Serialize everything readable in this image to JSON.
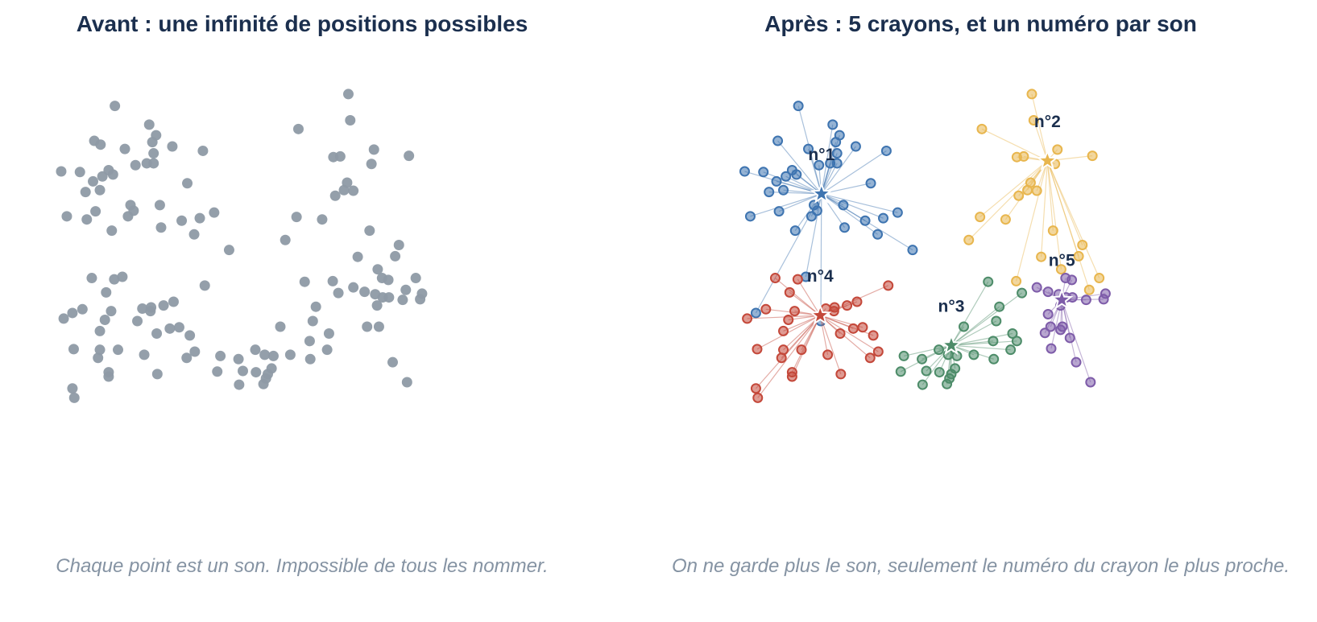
{
  "left_panel": {
    "title": "Avant : une infinité de positions possibles",
    "caption": "Chaque point est un son. Impossible de tous les nommer."
  },
  "right_panel": {
    "title": "Après : 5 crayons, et un numéro par son",
    "caption": "On ne garde plus le son, seulement le numéro du crayon le plus proche."
  },
  "colors": {
    "unassigned_point": "#8e9aa5",
    "cluster_1": "#3e74b0",
    "cluster_2": "#e8b64e",
    "cluster_3": "#4d8c69",
    "cluster_4": "#c4483a",
    "cluster_5": "#7e5ca9"
  },
  "chart_data": [
    {
      "type": "scatter",
      "title": "Avant : une infinité de positions possibles",
      "points": [
        [
          -4.31,
          1.29
        ],
        [
          -4.22,
          0.57
        ],
        [
          -4.27,
          -1.07
        ],
        [
          -4.13,
          -0.98
        ],
        [
          -4.11,
          -1.56
        ],
        [
          -4.13,
          -2.19
        ],
        [
          -4.1,
          -2.34
        ],
        [
          -4.01,
          1.28
        ],
        [
          -3.97,
          -0.92
        ],
        [
          -3.92,
          0.96
        ],
        [
          -3.9,
          0.52
        ],
        [
          -3.82,
          -0.42
        ],
        [
          -3.8,
          1.13
        ],
        [
          -3.78,
          1.78
        ],
        [
          -3.76,
          0.65
        ],
        [
          -3.72,
          -1.7
        ],
        [
          -3.69,
          0.99
        ],
        [
          -3.69,
          -1.27
        ],
        [
          -3.69,
          -1.57
        ],
        [
          -3.68,
          1.72
        ],
        [
          -3.65,
          1.21
        ],
        [
          -3.61,
          -1.09
        ],
        [
          -3.59,
          -0.65
        ],
        [
          -3.55,
          1.31
        ],
        [
          -3.55,
          -2.0
        ],
        [
          -3.55,
          -1.93
        ],
        [
          -3.51,
          -0.95
        ],
        [
          -3.5,
          0.34
        ],
        [
          -3.48,
          1.24
        ],
        [
          -3.46,
          -0.44
        ],
        [
          -3.45,
          2.34
        ],
        [
          -3.4,
          -1.57
        ],
        [
          -3.33,
          -0.4
        ],
        [
          -3.29,
          1.65
        ],
        [
          -3.24,
          0.57
        ],
        [
          -3.2,
          0.75
        ],
        [
          -3.15,
          0.66
        ],
        [
          -3.12,
          1.39
        ],
        [
          -3.09,
          -1.11
        ],
        [
          -3.01,
          -0.91
        ],
        [
          -2.98,
          -1.65
        ],
        [
          -2.94,
          1.42
        ],
        [
          -2.9,
          2.04
        ],
        [
          -2.88,
          -0.95
        ],
        [
          -2.87,
          -0.89
        ],
        [
          -2.85,
          1.76
        ],
        [
          -2.83,
          1.58
        ],
        [
          -2.83,
          1.42
        ],
        [
          -2.79,
          1.87
        ],
        [
          -2.78,
          -1.31
        ],
        [
          -2.77,
          -1.96
        ],
        [
          -2.73,
          0.75
        ],
        [
          -2.71,
          0.39
        ],
        [
          -2.67,
          -0.86
        ],
        [
          -2.57,
          -1.23
        ],
        [
          -2.53,
          1.69
        ],
        [
          -2.51,
          -0.8
        ],
        [
          -2.42,
          -1.21
        ],
        [
          -2.38,
          0.5
        ],
        [
          -2.3,
          -1.7
        ],
        [
          -2.29,
          1.1
        ],
        [
          -2.25,
          -1.34
        ],
        [
          -2.18,
          0.28
        ],
        [
          -2.17,
          -1.6
        ],
        [
          -2.09,
          0.54
        ],
        [
          -2.04,
          1.62
        ],
        [
          -2.01,
          -0.54
        ],
        [
          -1.86,
          0.63
        ],
        [
          -1.81,
          -1.92
        ],
        [
          -1.76,
          -1.67
        ],
        [
          -1.62,
          0.03
        ],
        [
          -1.47,
          -1.72
        ],
        [
          -1.46,
          -2.13
        ],
        [
          -1.4,
          -1.91
        ],
        [
          -1.2,
          -1.57
        ],
        [
          -1.19,
          -1.93
        ],
        [
          -1.07,
          -2.12
        ],
        [
          -1.05,
          -1.65
        ],
        [
          -1.03,
          -2.03
        ],
        [
          -1.0,
          -1.96
        ],
        [
          -0.94,
          -1.87
        ],
        [
          -0.91,
          -1.67
        ],
        [
          -0.8,
          -1.2
        ],
        [
          -0.72,
          0.19
        ],
        [
          -0.64,
          -1.65
        ],
        [
          -0.54,
          0.56
        ],
        [
          -0.51,
          1.97
        ],
        [
          -0.41,
          -0.48
        ],
        [
          -0.33,
          -1.43
        ],
        [
          -0.32,
          -1.72
        ],
        [
          -0.28,
          -1.11
        ],
        [
          -0.23,
          -0.88
        ],
        [
          -0.13,
          0.52
        ],
        [
          -0.05,
          -1.57
        ],
        [
          -0.02,
          -1.31
        ],
        [
          0.04,
          -0.47
        ],
        [
          0.05,
          1.52
        ],
        [
          0.08,
          0.9
        ],
        [
          0.13,
          -0.66
        ],
        [
          0.16,
          1.53
        ],
        [
          0.22,
          0.99
        ],
        [
          0.27,
          1.11
        ],
        [
          0.29,
          2.53
        ],
        [
          0.32,
          2.11
        ],
        [
          0.37,
          0.98
        ],
        [
          0.37,
          -0.57
        ],
        [
          0.44,
          -0.08
        ],
        [
          0.55,
          -0.64
        ],
        [
          0.59,
          -1.2
        ],
        [
          0.63,
          0.34
        ],
        [
          0.66,
          1.41
        ],
        [
          0.7,
          1.64
        ],
        [
          0.72,
          -0.68
        ],
        [
          0.75,
          -0.86
        ],
        [
          0.76,
          -0.28
        ],
        [
          0.78,
          -1.2
        ],
        [
          0.83,
          -0.42
        ],
        [
          0.84,
          -0.73
        ],
        [
          0.93,
          -0.45
        ],
        [
          0.94,
          -0.73
        ],
        [
          1.0,
          -1.77
        ],
        [
          1.04,
          -0.07
        ],
        [
          1.1,
          0.11
        ],
        [
          1.16,
          -0.77
        ],
        [
          1.21,
          -0.61
        ],
        [
          1.23,
          -2.09
        ],
        [
          1.26,
          1.54
        ],
        [
          1.37,
          -0.42
        ],
        [
          1.44,
          -0.76
        ],
        [
          1.47,
          -0.67
        ]
      ]
    },
    {
      "type": "scatter",
      "title": "Après : 5 crayons, et un numéro par son",
      "series": [
        {
          "label": "n°1",
          "centroid": [
            -3.08,
            0.93
          ],
          "points": [
            [
              -4.31,
              1.29
            ],
            [
              -4.22,
              0.57
            ],
            [
              -4.13,
              -0.98
            ],
            [
              -4.01,
              1.28
            ],
            [
              -3.92,
              0.96
            ],
            [
              -3.8,
              1.13
            ],
            [
              -3.78,
              1.78
            ],
            [
              -3.76,
              0.65
            ],
            [
              -3.69,
              0.99
            ],
            [
              -3.65,
              1.21
            ],
            [
              -3.55,
              1.31
            ],
            [
              -3.5,
              0.34
            ],
            [
              -3.48,
              1.24
            ],
            [
              -3.45,
              2.34
            ],
            [
              -3.33,
              -0.4
            ],
            [
              -3.29,
              1.65
            ],
            [
              -3.24,
              0.57
            ],
            [
              -3.2,
              0.75
            ],
            [
              -3.15,
              0.66
            ],
            [
              -3.12,
              1.39
            ],
            [
              -3.09,
              -1.11
            ],
            [
              -2.94,
              1.42
            ],
            [
              -2.9,
              2.04
            ],
            [
              -2.85,
              1.76
            ],
            [
              -2.83,
              1.58
            ],
            [
              -2.83,
              1.42
            ],
            [
              -2.79,
              1.87
            ],
            [
              -2.73,
              0.75
            ],
            [
              -2.71,
              0.39
            ],
            [
              -2.53,
              1.69
            ],
            [
              -2.38,
              0.5
            ],
            [
              -2.29,
              1.1
            ],
            [
              -2.18,
              0.28
            ],
            [
              -2.09,
              0.54
            ],
            [
              -2.04,
              1.62
            ],
            [
              -1.86,
              0.63
            ],
            [
              -1.62,
              0.03
            ]
          ]
        },
        {
          "label": "n°2",
          "centroid": [
            0.54,
            1.46
          ],
          "points": [
            [
              -0.72,
              0.19
            ],
            [
              -0.54,
              0.56
            ],
            [
              -0.51,
              1.97
            ],
            [
              -0.13,
              0.52
            ],
            [
              0.04,
              -0.47
            ],
            [
              0.05,
              1.52
            ],
            [
              0.08,
              0.9
            ],
            [
              0.16,
              1.53
            ],
            [
              0.22,
              0.99
            ],
            [
              0.27,
              1.11
            ],
            [
              0.29,
              2.53
            ],
            [
              0.32,
              2.11
            ],
            [
              0.37,
              0.98
            ],
            [
              0.44,
              -0.08
            ],
            [
              0.63,
              0.34
            ],
            [
              0.66,
              1.41
            ],
            [
              0.7,
              1.64
            ],
            [
              0.76,
              -0.28
            ],
            [
              1.04,
              -0.07
            ],
            [
              1.1,
              0.11
            ],
            [
              1.21,
              -0.61
            ],
            [
              1.26,
              1.54
            ],
            [
              1.37,
              -0.42
            ]
          ]
        },
        {
          "label": "n°3",
          "centroid": [
            -1.0,
            -1.5
          ],
          "points": [
            [
              -1.81,
              -1.92
            ],
            [
              -1.76,
              -1.67
            ],
            [
              -1.47,
              -1.72
            ],
            [
              -1.46,
              -2.13
            ],
            [
              -1.4,
              -1.91
            ],
            [
              -1.2,
              -1.57
            ],
            [
              -1.19,
              -1.93
            ],
            [
              -1.07,
              -2.12
            ],
            [
              -1.05,
              -1.65
            ],
            [
              -1.03,
              -2.03
            ],
            [
              -1.0,
              -1.96
            ],
            [
              -0.94,
              -1.87
            ],
            [
              -0.91,
              -1.67
            ],
            [
              -0.8,
              -1.2
            ],
            [
              -0.64,
              -1.65
            ],
            [
              -0.41,
              -0.48
            ],
            [
              -0.33,
              -1.43
            ],
            [
              -0.32,
              -1.72
            ],
            [
              -0.28,
              -1.11
            ],
            [
              -0.23,
              -0.88
            ],
            [
              -0.05,
              -1.57
            ],
            [
              -0.02,
              -1.31
            ],
            [
              0.05,
              -1.43
            ],
            [
              0.13,
              -0.66
            ]
          ]
        },
        {
          "label": "n°4",
          "centroid": [
            -3.1,
            -1.02
          ],
          "points": [
            [
              -4.27,
              -1.07
            ],
            [
              -4.11,
              -1.56
            ],
            [
              -4.13,
              -2.19
            ],
            [
              -4.1,
              -2.34
            ],
            [
              -3.97,
              -0.92
            ],
            [
              -3.82,
              -0.42
            ],
            [
              -3.72,
              -1.7
            ],
            [
              -3.69,
              -1.27
            ],
            [
              -3.69,
              -1.57
            ],
            [
              -3.61,
              -1.09
            ],
            [
              -3.59,
              -0.65
            ],
            [
              -3.55,
              -2.0
            ],
            [
              -3.55,
              -1.93
            ],
            [
              -3.51,
              -0.95
            ],
            [
              -3.46,
              -0.44
            ],
            [
              -3.4,
              -1.57
            ],
            [
              -3.01,
              -0.91
            ],
            [
              -2.98,
              -1.65
            ],
            [
              -2.88,
              -0.95
            ],
            [
              -2.87,
              -0.89
            ],
            [
              -2.78,
              -1.31
            ],
            [
              -2.77,
              -1.96
            ],
            [
              -2.67,
              -0.86
            ],
            [
              -2.57,
              -1.23
            ],
            [
              -2.51,
              -0.8
            ],
            [
              -2.42,
              -1.21
            ],
            [
              -2.3,
              -1.7
            ],
            [
              -2.25,
              -1.34
            ],
            [
              -2.17,
              -1.6
            ],
            [
              -2.01,
              -0.54
            ]
          ]
        },
        {
          "label": "n°5",
          "centroid": [
            0.77,
            -0.77
          ],
          "points": [
            [
              0.37,
              -0.57
            ],
            [
              0.55,
              -0.64
            ],
            [
              0.59,
              -1.2
            ],
            [
              0.72,
              -0.68
            ],
            [
              0.75,
              -0.86
            ],
            [
              0.78,
              -1.2
            ],
            [
              0.83,
              -0.42
            ],
            [
              0.84,
              -0.73
            ],
            [
              0.93,
              -0.45
            ],
            [
              0.94,
              -0.73
            ],
            [
              1.0,
              -1.77
            ],
            [
              1.16,
              -0.77
            ],
            [
              1.23,
              -2.09
            ],
            [
              1.44,
              -0.76
            ],
            [
              1.47,
              -0.67
            ],
            [
              0.55,
              -1.0
            ],
            [
              0.5,
              -1.3
            ],
            [
              0.9,
              -1.38
            ],
            [
              0.75,
              -1.25
            ],
            [
              0.6,
              -1.55
            ]
          ]
        }
      ]
    }
  ]
}
